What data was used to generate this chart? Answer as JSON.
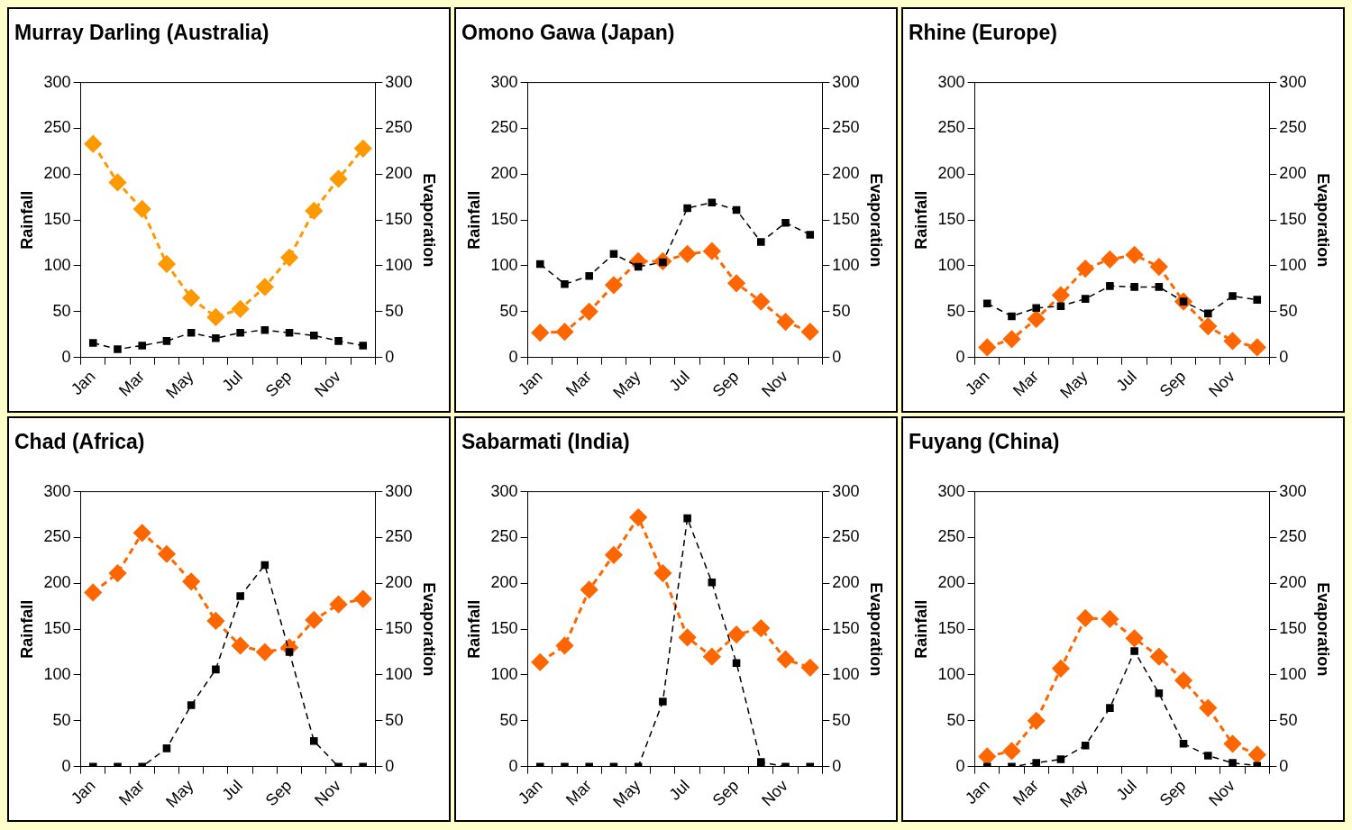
{
  "chart_data": [
    {
      "type": "line",
      "title": "Murray Darling (Australia)",
      "ylabel": "Rainfall",
      "y2label": "Evaporation",
      "categories": [
        "Jan",
        null,
        "Mar",
        null,
        "May",
        null,
        "Jul",
        null,
        "Sep",
        null,
        "Nov",
        null
      ],
      "ylim": [
        0,
        300
      ],
      "yticks": [
        0,
        50,
        100,
        150,
        200,
        250,
        300
      ],
      "y2lim": [
        0,
        300
      ],
      "y2ticks": [
        0,
        50,
        100,
        150,
        200,
        250,
        300
      ],
      "series": [
        {
          "color": "#000000",
          "marker": "square",
          "line_style": "dashed",
          "values": [
            16,
            9,
            13,
            18,
            27,
            21,
            27,
            30,
            27,
            24,
            18,
            13
          ]
        },
        {
          "color": "#ff9900",
          "marker": "diamond",
          "line_style": "dashed",
          "axis": "y2",
          "values": [
            233,
            191,
            162,
            102,
            65,
            44,
            53,
            77,
            109,
            160,
            195,
            228
          ]
        }
      ]
    },
    {
      "type": "line",
      "title": "Omono Gawa (Japan)",
      "ylabel": "Rainfall",
      "y2label": "Evaporation",
      "categories": [
        "Jan",
        null,
        "Mar",
        null,
        "May",
        null,
        "Jul",
        null,
        "Sep",
        null,
        "Nov",
        null
      ],
      "ylim": [
        0,
        300
      ],
      "yticks": [
        0,
        50,
        100,
        150,
        200,
        250,
        300
      ],
      "y2lim": [
        0,
        300
      ],
      "y2ticks": [
        0,
        50,
        100,
        150,
        200,
        250,
        300
      ],
      "series": [
        {
          "color": "#000000",
          "marker": "square",
          "line_style": "dashed",
          "values": [
            102,
            80,
            89,
            113,
            99,
            104,
            163,
            169,
            161,
            126,
            147,
            134
          ]
        },
        {
          "color": "#ff6600",
          "marker": "diamond",
          "line_style": "dashed",
          "axis": "y2",
          "values": [
            27,
            28,
            50,
            79,
            105,
            105,
            113,
            116,
            81,
            61,
            39,
            28
          ]
        }
      ]
    },
    {
      "type": "line",
      "title": "Rhine (Europe)",
      "ylabel": "Rainfall",
      "y2label": "Evaporation",
      "categories": [
        "Jan",
        null,
        "Mar",
        null,
        "May",
        null,
        "Jul",
        null,
        "Sep",
        null,
        "Nov",
        null
      ],
      "ylim": [
        0,
        300
      ],
      "yticks": [
        0,
        50,
        100,
        150,
        200,
        250,
        300
      ],
      "y2lim": [
        0,
        300
      ],
      "y2ticks": [
        0,
        50,
        100,
        150,
        200,
        250,
        300
      ],
      "series": [
        {
          "color": "#000000",
          "marker": "square",
          "line_style": "dashed",
          "values": [
            59,
            45,
            54,
            56,
            64,
            78,
            77,
            77,
            61,
            48,
            67,
            63
          ]
        },
        {
          "color": "#ff6600",
          "marker": "diamond",
          "line_style": "dashed",
          "axis": "y2",
          "values": [
            11,
            20,
            42,
            68,
            97,
            107,
            112,
            99,
            61,
            34,
            18,
            11
          ]
        }
      ]
    },
    {
      "type": "line",
      "title": "Chad (Africa)",
      "ylabel": "Rainfall",
      "y2label": "Evaporation",
      "categories": [
        "Jan",
        null,
        "Mar",
        null,
        "May",
        null,
        "Jul",
        null,
        "Sep",
        null,
        "Nov",
        null
      ],
      "ylim": [
        0,
        300
      ],
      "yticks": [
        0,
        50,
        100,
        150,
        200,
        250,
        300
      ],
      "y2lim": [
        0,
        300
      ],
      "y2ticks": [
        0,
        50,
        100,
        150,
        200,
        250,
        300
      ],
      "series": [
        {
          "color": "#000000",
          "marker": "square",
          "line_style": "dashed",
          "values": [
            0,
            0,
            0,
            20,
            67,
            106,
            186,
            220,
            125,
            28,
            0,
            0
          ]
        },
        {
          "color": "#ff6600",
          "marker": "diamond",
          "line_style": "dashed",
          "axis": "y2",
          "values": [
            190,
            211,
            255,
            232,
            202,
            159,
            132,
            125,
            130,
            160,
            177,
            183
          ]
        }
      ]
    },
    {
      "type": "line",
      "title": "Sabarmati (India)",
      "ylabel": "Rainfall",
      "y2label": "Evaporation",
      "categories": [
        "Jan",
        null,
        "Mar",
        null,
        "May",
        null,
        "Jul",
        null,
        "Sep",
        null,
        "Nov",
        null
      ],
      "ylim": [
        0,
        300
      ],
      "yticks": [
        0,
        50,
        100,
        150,
        200,
        250,
        300
      ],
      "y2lim": [
        0,
        300
      ],
      "y2ticks": [
        0,
        50,
        100,
        150,
        200,
        250,
        300
      ],
      "series": [
        {
          "color": "#000000",
          "marker": "square",
          "line_style": "dashed",
          "values": [
            0,
            0,
            0,
            0,
            0,
            71,
            271,
            201,
            113,
            5,
            0,
            0
          ]
        },
        {
          "color": "#ff6600",
          "marker": "diamond",
          "line_style": "dashed",
          "axis": "y2",
          "values": [
            114,
            132,
            193,
            231,
            272,
            211,
            141,
            120,
            144,
            151,
            117,
            108
          ]
        }
      ]
    },
    {
      "type": "line",
      "title": "Fuyang (China)",
      "ylabel": "Rainfall",
      "y2label": "Evaporation",
      "categories": [
        "Jan",
        null,
        "Mar",
        null,
        "May",
        null,
        "Jul",
        null,
        "Sep",
        null,
        "Nov",
        null
      ],
      "ylim": [
        0,
        300
      ],
      "yticks": [
        0,
        50,
        100,
        150,
        200,
        250,
        300
      ],
      "y2lim": [
        0,
        300
      ],
      "y2ticks": [
        0,
        50,
        100,
        150,
        200,
        250,
        300
      ],
      "series": [
        {
          "color": "#000000",
          "marker": "square",
          "line_style": "dashed",
          "values": [
            0,
            0,
            4,
            8,
            23,
            64,
            126,
            80,
            25,
            12,
            4,
            1
          ]
        },
        {
          "color": "#ff6600",
          "marker": "diamond",
          "line_style": "dashed",
          "axis": "y2",
          "values": [
            11,
            17,
            50,
            107,
            162,
            161,
            140,
            120,
            94,
            64,
            25,
            13
          ]
        }
      ]
    }
  ]
}
